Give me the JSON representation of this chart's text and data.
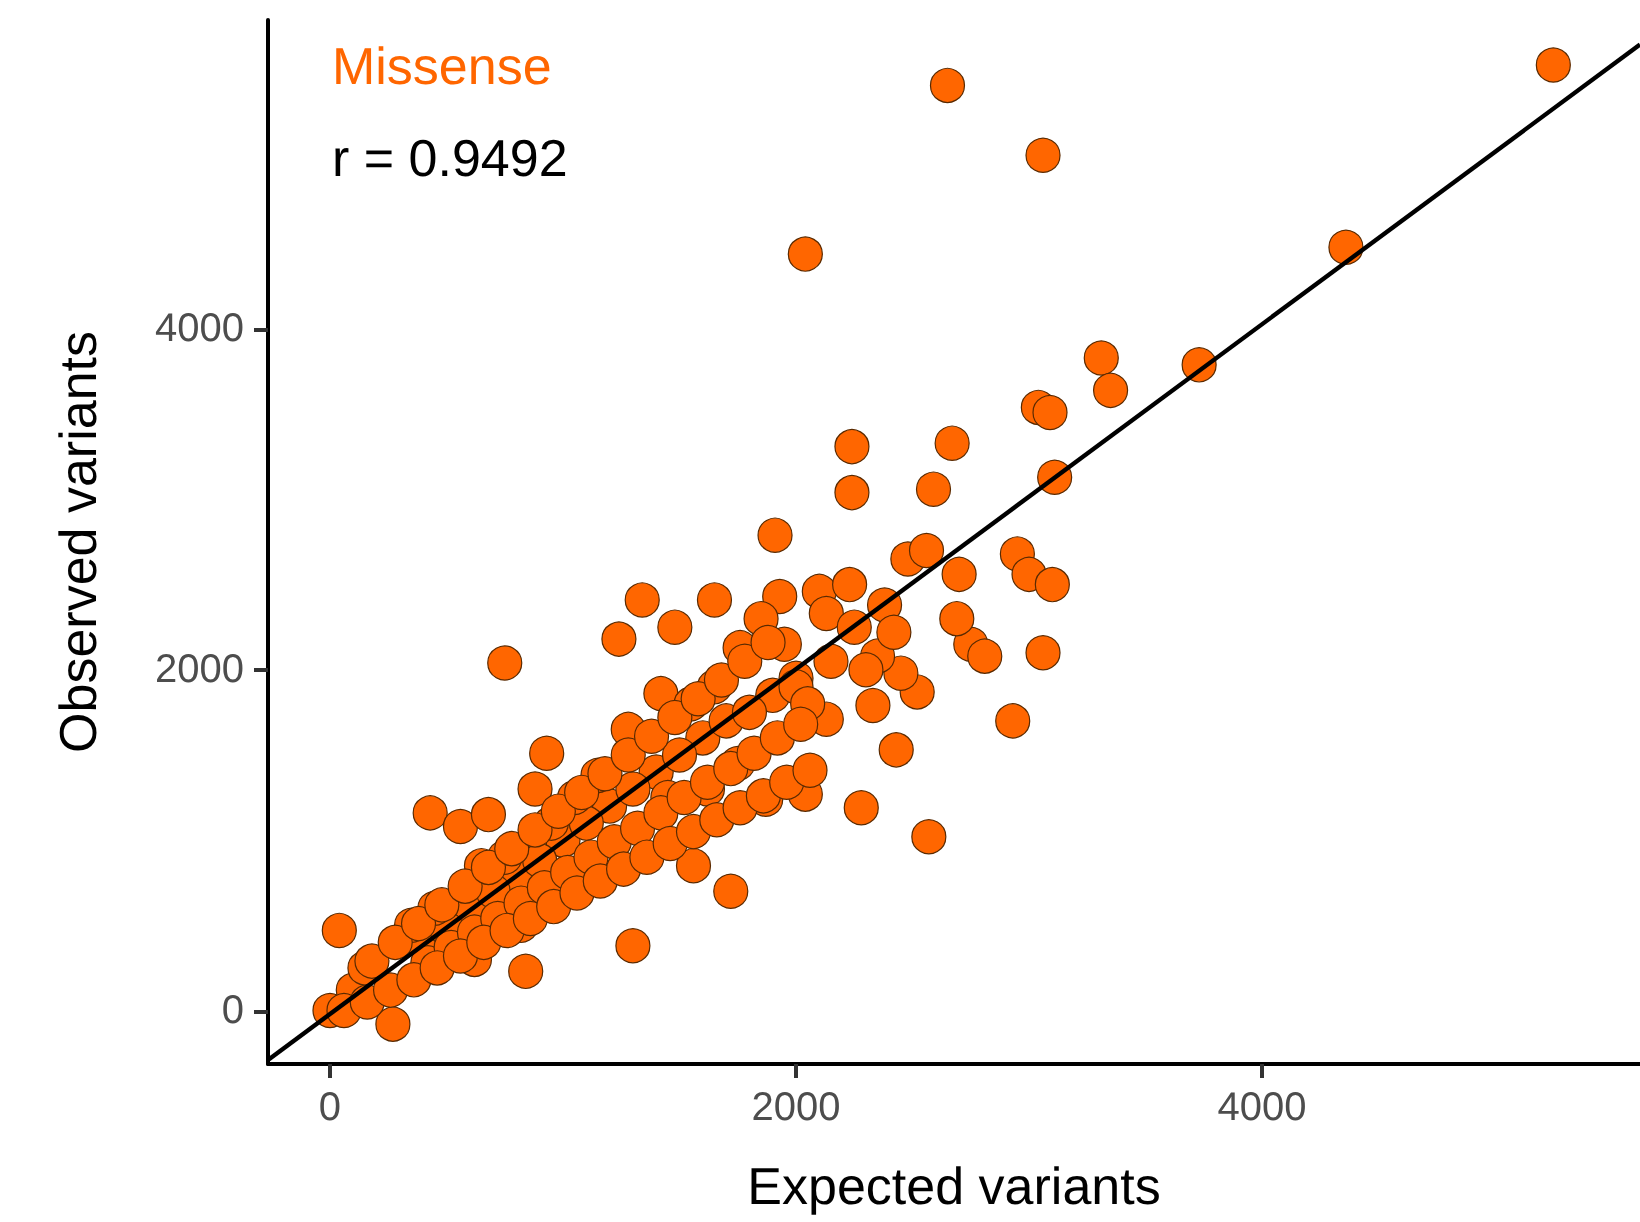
{
  "chart_data": {
    "type": "scatter",
    "xlabel": "Expected variants",
    "ylabel": "Observed variants",
    "xlim": [
      -266,
      5622
    ],
    "ylim": [
      -314,
      5814
    ],
    "xticks": [
      0,
      2000,
      4000
    ],
    "yticks": [
      0,
      2000,
      4000
    ],
    "grid": false,
    "annotations": [
      "Missense",
      "r = 0.9492"
    ],
    "series": [
      {
        "color": "#ff6600",
        "marker": "circle",
        "x": [
          5250,
          2650,
          3060,
          4360,
          2040,
          3310,
          3730,
          3040,
          3090,
          3350,
          2240,
          2670,
          2240,
          2590,
          3110,
          1910,
          2480,
          2560,
          2700,
          2950,
          3000,
          3100,
          3060,
          1340,
          1650,
          1930,
          750,
          430,
          1720,
          2570,
          2930,
          2280,
          2040,
          2330,
          2430,
          2520,
          2450,
          2350,
          1480,
          1240,
          1850,
          2100,
          2230,
          2380,
          2420,
          2750,
          2810,
          2690,
          2000,
          1900,
          1600,
          1400,
          1200,
          1000,
          800,
          600,
          400,
          0,
          100,
          500,
          700,
          900,
          1100,
          1300,
          1500,
          1700,
          1800,
          2000,
          2150,
          40,
          560,
          930,
          1420,
          1760,
          2130,
          270,
          840,
          1300,
          1560,
          1870,
          2130,
          150,
          350,
          650,
          1050,
          1150,
          1550,
          1650,
          950,
          750,
          450,
          1950,
          2250,
          1620,
          820,
          620,
          1750,
          1450,
          2050,
          2300,
          1280,
          880,
          680,
          420,
          520,
          620,
          720,
          820,
          920,
          1020,
          1120,
          1220,
          1320,
          1420,
          1520,
          1620,
          1720,
          1820,
          1920,
          2020,
          180,
          280,
          380,
          480,
          580,
          680,
          780,
          880,
          980,
          1080,
          1180,
          1280,
          1380,
          1480,
          1580,
          1680,
          1780,
          1880,
          60,
          160,
          260,
          360,
          460,
          560,
          660,
          760,
          860,
          960,
          1060,
          1160,
          1260,
          1360,
          1460,
          1560,
          1660,
          1760,
          1860,
          1960,
          2060
        ],
        "values": [
          5550,
          5430,
          5020,
          4480,
          4440,
          3830,
          3790,
          3540,
          3510,
          3640,
          3310,
          3330,
          3040,
          3060,
          3130,
          2790,
          2650,
          2700,
          2560,
          2680,
          2560,
          2500,
          2100,
          2410,
          2410,
          2430,
          2040,
          1160,
          700,
          1020,
          1700,
          1190,
          1270,
          1790,
          1530,
          1870,
          1980,
          2080,
          2250,
          2180,
          2300,
          2460,
          2500,
          2380,
          2220,
          2150,
          2080,
          2300,
          1950,
          1850,
          1600,
          1400,
          1200,
          1000,
          800,
          600,
          400,
          0,
          120,
          480,
          700,
          880,
          1100,
          1300,
          1500,
          1700,
          1750,
          1900,
          2050,
          470,
          1080,
          1510,
          1860,
          2130,
          2330,
          -80,
          230,
          380,
          850,
          1240,
          1710,
          250,
          500,
          850,
          1250,
          1380,
          1800,
          1900,
          1100,
          900,
          600,
          2150,
          2250,
          1300,
          500,
          300,
          1450,
          1250,
          1800,
          2000,
          1650,
          1300,
          1150,
          280,
          370,
          460,
          540,
          630,
          720,
          810,
          900,
          990,
          1070,
          1160,
          1250,
          1340,
          1420,
          1510,
          1600,
          1680,
          290,
          400,
          510,
          620,
          730,
          840,
          950,
          1060,
          1170,
          1280,
          1390,
          1500,
          1610,
          1720,
          1830,
          1940,
          2050,
          2160,
          0,
          50,
          120,
          180,
          250,
          320,
          400,
          470,
          540,
          610,
          690,
          760,
          830,
          900,
          980,
          1050,
          1120,
          1190,
          1260,
          1340,
          1410
        ]
      },
      {
        "type": "line",
        "color": "#000000",
        "x": [
          -266,
          5622
        ],
        "values": [
          -290,
          5670
        ]
      }
    ]
  }
}
